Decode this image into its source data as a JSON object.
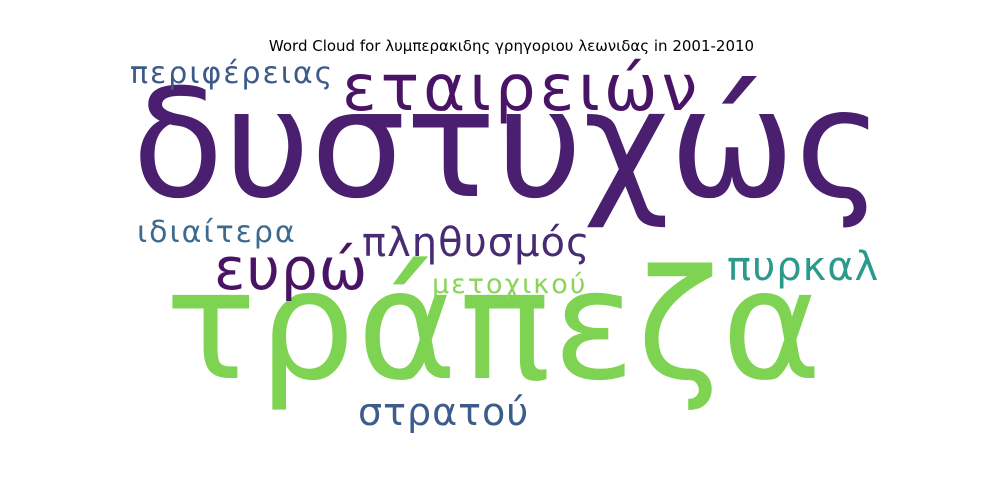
{
  "chart_data": {
    "type": "wordcloud",
    "title": "Word Cloud for λυμπερακιδης γρηγοριου λεωνιδας in 2001-2010",
    "words": [
      {
        "text": "δυστυχώς",
        "color": "#4b1f6f",
        "weight": 100
      },
      {
        "text": "τράπεζα",
        "color": "#7ed452",
        "weight": 95
      },
      {
        "text": "εταιρειών",
        "color": "#4a1466",
        "weight": 45
      },
      {
        "text": "ευρώ",
        "color": "#4a1466",
        "weight": 38
      },
      {
        "text": "πληθυσμός",
        "color": "#482c73",
        "weight": 30
      },
      {
        "text": "πυρκαλ",
        "color": "#2a9a8b",
        "weight": 30
      },
      {
        "text": "στρατού",
        "color": "#3c5c8c",
        "weight": 28
      },
      {
        "text": "περιφέρειας",
        "color": "#3c5a8a",
        "weight": 22
      },
      {
        "text": "ιδιαίτερα",
        "color": "#3c6a90",
        "weight": 22
      },
      {
        "text": "μετοχικού",
        "color": "#8ad45a",
        "weight": 20
      }
    ]
  }
}
